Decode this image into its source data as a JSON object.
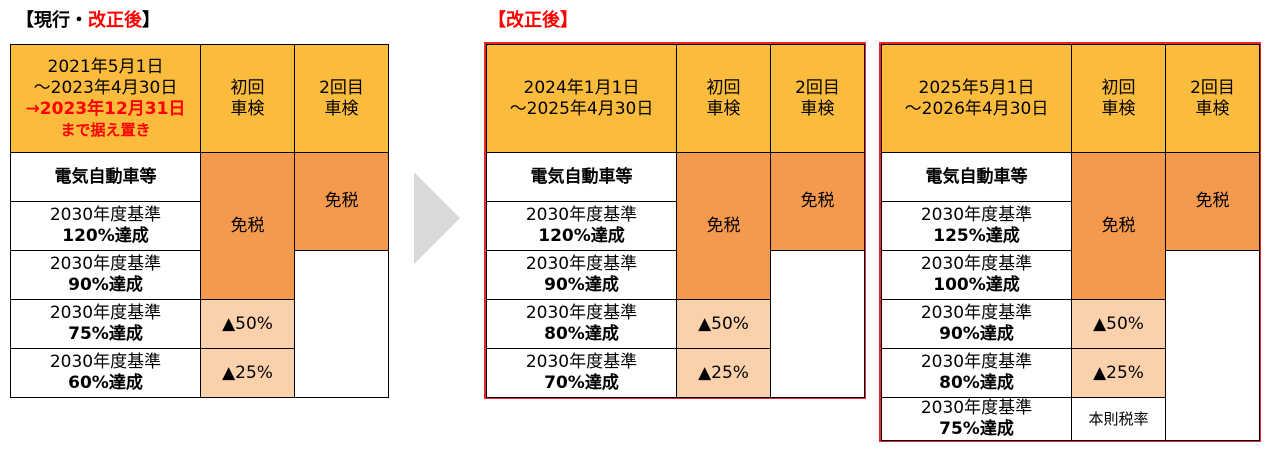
{
  "current": {
    "title_a": "【現行・",
    "title_b": "改正後",
    "title_c": "】",
    "period_line1": "2021年5月1日",
    "period_line2": "～2023年4月30日",
    "period_line3": "→2023年12月31日",
    "period_line4": "まで据え置き",
    "col1": [
      "初回",
      "車検"
    ],
    "col2": [
      "2回目",
      "車検"
    ],
    "rows": [
      {
        "label": "電気自動車等"
      },
      {
        "line1": "2030年度基準",
        "line2": "120%達成"
      },
      {
        "line1": "2030年度基準",
        "line2": "90%達成"
      },
      {
        "line1": "2030年度基準",
        "line2": "75%達成"
      },
      {
        "line1": "2030年度基準",
        "line2": "60%達成"
      }
    ],
    "exempt1": "免税",
    "exempt2": "免税",
    "pct50": "▲50%",
    "pct25": "▲25%"
  },
  "revised_title": "【改正後】",
  "revised_a": {
    "period_line1": "2024年1月1日",
    "period_line2": "～2025年4月30日",
    "col1": [
      "初回",
      "車検"
    ],
    "col2": [
      "2回目",
      "車検"
    ],
    "rows": [
      {
        "label": "電気自動車等"
      },
      {
        "line1": "2030年度基準",
        "line2": "120%達成"
      },
      {
        "line1": "2030年度基準",
        "line2": "90%達成"
      },
      {
        "line1": "2030年度基準",
        "line2": "80%達成"
      },
      {
        "line1": "2030年度基準",
        "line2": "70%達成"
      }
    ],
    "exempt1": "免税",
    "exempt2": "免税",
    "pct50": "▲50%",
    "pct25": "▲25%"
  },
  "revised_b": {
    "period_line1": "2025年5月1日",
    "period_line2": "～2026年4月30日",
    "col1": [
      "初回",
      "車検"
    ],
    "col2": [
      "2回目",
      "車検"
    ],
    "rows": [
      {
        "label": "電気自動車等"
      },
      {
        "line1": "2030年度基準",
        "line2": "125%達成"
      },
      {
        "line1": "2030年度基準",
        "line2": "100%達成"
      },
      {
        "line1": "2030年度基準",
        "line2": "90%達成"
      },
      {
        "line1": "2030年度基準",
        "line2": "80%達成"
      },
      {
        "line1": "2030年度基準",
        "line2": "75%達成"
      }
    ],
    "exempt1": "免税",
    "exempt2": "免税",
    "pct50": "▲50%",
    "pct25": "▲25%",
    "base_rate": "本則税率"
  },
  "colors": {
    "header": "#fbbc3e",
    "exempt": "#f59a4c",
    "reduced": "#fbd1ac",
    "frame": "#e8262b",
    "highlight": "#ff0000"
  }
}
